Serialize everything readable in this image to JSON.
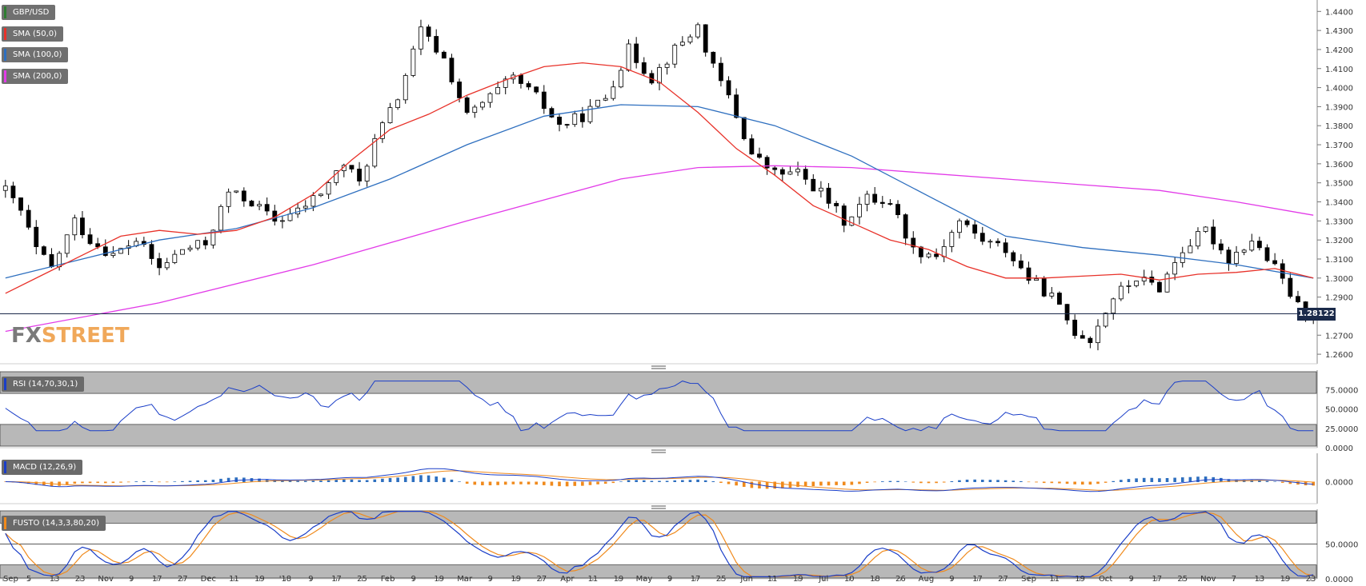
{
  "chart_data": [
    {
      "type": "candlestick",
      "title": "GBP/USD",
      "indicators": [
        "SMA (50,0)",
        "SMA (100,0)",
        "SMA (200,0)"
      ],
      "colors": {
        "sma50": "#e8322a",
        "sma100": "#2e6fbf",
        "sma200": "#e23be8",
        "candle": "#000000",
        "symbol_swatch": "#2e7d32"
      },
      "y_ticks": [
        "1.4400",
        "1.4300",
        "1.4200",
        "1.4100",
        "1.4000",
        "1.3900",
        "1.3800",
        "1.3700",
        "1.3600",
        "1.3500",
        "1.3400",
        "1.3300",
        "1.3200",
        "1.3100",
        "1.3000",
        "1.2900",
        "1.2700",
        "1.2600"
      ],
      "ylim": [
        1.255,
        1.446
      ],
      "last_price_label": "1.28122",
      "last_price": 1.28122,
      "sma50_profile": [
        [
          0,
          1.292
        ],
        [
          5,
          1.302
        ],
        [
          10,
          1.312
        ],
        [
          15,
          1.322
        ],
        [
          20,
          1.325
        ],
        [
          25,
          1.323
        ],
        [
          30,
          1.325
        ],
        [
          35,
          1.332
        ],
        [
          40,
          1.344
        ],
        [
          45,
          1.362
        ],
        [
          50,
          1.378
        ],
        [
          55,
          1.386
        ],
        [
          60,
          1.396
        ],
        [
          65,
          1.404
        ],
        [
          70,
          1.411
        ],
        [
          75,
          1.413
        ],
        [
          80,
          1.411
        ],
        [
          85,
          1.403
        ],
        [
          90,
          1.387
        ],
        [
          95,
          1.368
        ],
        [
          100,
          1.354
        ],
        [
          105,
          1.338
        ],
        [
          110,
          1.329
        ],
        [
          115,
          1.32
        ],
        [
          120,
          1.315
        ],
        [
          125,
          1.306
        ],
        [
          130,
          1.3
        ],
        [
          135,
          1.3
        ],
        [
          140,
          1.301
        ],
        [
          145,
          1.302
        ],
        [
          150,
          1.299
        ],
        [
          155,
          1.302
        ],
        [
          160,
          1.303
        ],
        [
          165,
          1.305
        ],
        [
          170,
          1.3
        ]
      ],
      "sma100_profile": [
        [
          0,
          1.3
        ],
        [
          10,
          1.31
        ],
        [
          20,
          1.32
        ],
        [
          30,
          1.326
        ],
        [
          40,
          1.337
        ],
        [
          50,
          1.352
        ],
        [
          60,
          1.37
        ],
        [
          70,
          1.385
        ],
        [
          80,
          1.391
        ],
        [
          90,
          1.39
        ],
        [
          100,
          1.38
        ],
        [
          110,
          1.364
        ],
        [
          120,
          1.343
        ],
        [
          130,
          1.322
        ],
        [
          140,
          1.316
        ],
        [
          150,
          1.312
        ],
        [
          160,
          1.307
        ],
        [
          170,
          1.3
        ]
      ],
      "sma200_profile": [
        [
          0,
          1.272
        ],
        [
          20,
          1.287
        ],
        [
          40,
          1.307
        ],
        [
          60,
          1.33
        ],
        [
          80,
          1.352
        ],
        [
          90,
          1.358
        ],
        [
          100,
          1.359
        ],
        [
          110,
          1.358
        ],
        [
          120,
          1.355
        ],
        [
          130,
          1.352
        ],
        [
          140,
          1.349
        ],
        [
          150,
          1.346
        ],
        [
          160,
          1.34
        ],
        [
          170,
          1.333
        ]
      ]
    },
    {
      "type": "line",
      "title": "RSI (14,70,30,1)",
      "y_ticks": [
        "75.0000",
        "50.0000",
        "25.0000",
        "0.0000"
      ],
      "ylim": [
        0,
        100
      ],
      "overbought": 70,
      "oversold": 30,
      "colors": {
        "line": "#1a3ec8",
        "zone": "#b8b8b8"
      }
    },
    {
      "type": "bar",
      "title": "MACD (12,26,9)",
      "y_ticks": [
        "0.0000"
      ],
      "colors": {
        "macd": "#1a3ec8",
        "signal": "#f08a1c",
        "hist_pos": "#2e6fbf",
        "hist_neg": "#f08a1c"
      }
    },
    {
      "type": "line",
      "title": "FUSTO (14,3,3,80,20)",
      "y_ticks": [
        "50.0000",
        "0.0000"
      ],
      "ylim": [
        0,
        100
      ],
      "overbought": 80,
      "oversold": 20,
      "colors": {
        "k": "#1a3ec8",
        "d": "#f08a1c",
        "zone": "#b8b8b8"
      }
    }
  ],
  "x_axis_labels": [
    "Sep",
    "5",
    "13",
    "23",
    "Nov",
    "9",
    "17",
    "27",
    "Dec",
    "11",
    "19",
    "'18",
    "9",
    "17",
    "25",
    "Feb",
    "9",
    "19",
    "Mar",
    "9",
    "19",
    "27",
    "Apr",
    "11",
    "19",
    "May",
    "9",
    "17",
    "25",
    "Jun",
    "11",
    "19",
    "Jul",
    "10",
    "18",
    "26",
    "Aug",
    "9",
    "17",
    "27",
    "Sep",
    "11",
    "19",
    "Oct",
    "9",
    "17",
    "25",
    "Nov",
    "7",
    "13",
    "19",
    "23"
  ],
  "watermark": {
    "left": "FX",
    "right": "STREET"
  }
}
